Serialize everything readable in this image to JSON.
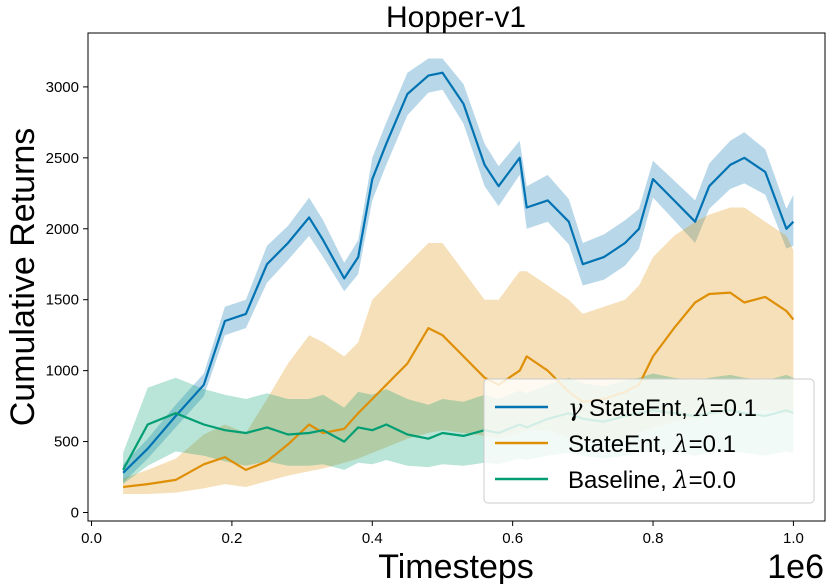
{
  "chart_data": {
    "type": "line",
    "title": "Hopper-v1",
    "xlabel": "Timesteps",
    "ylabel": "Cumulative Returns",
    "x_offset_label": "1e6",
    "xlim": [
      -0.005,
      1.045
    ],
    "ylim": [
      -60,
      3380
    ],
    "x_ticks": [
      0.0,
      0.2,
      0.4,
      0.6,
      0.8,
      1.0
    ],
    "x_tick_labels": [
      "0.0",
      "0.2",
      "0.4",
      "0.6",
      "0.8",
      "1.0"
    ],
    "y_ticks": [
      0,
      500,
      1000,
      1500,
      2000,
      2500,
      3000
    ],
    "y_tick_labels": [
      "0",
      "500",
      "1000",
      "1500",
      "2000",
      "2500",
      "3000"
    ],
    "grid": false,
    "legend_position": "lower-right",
    "series": [
      {
        "name": "γ StateEnt, λ=0.1",
        "legend_parts": [
          [
            "γ",
            true
          ],
          [
            " StateEnt, ",
            false
          ],
          [
            "λ",
            true
          ],
          [
            "=0.1",
            false
          ]
        ],
        "color": "#0173b2",
        "x": [
          0.045,
          0.08,
          0.12,
          0.16,
          0.19,
          0.22,
          0.25,
          0.28,
          0.31,
          0.33,
          0.36,
          0.38,
          0.4,
          0.42,
          0.45,
          0.48,
          0.5,
          0.53,
          0.56,
          0.58,
          0.61,
          0.62,
          0.65,
          0.68,
          0.7,
          0.73,
          0.76,
          0.78,
          0.8,
          0.83,
          0.86,
          0.88,
          0.91,
          0.93,
          0.96,
          0.99,
          1.0
        ],
        "y": [
          280,
          450,
          680,
          900,
          1350,
          1400,
          1750,
          1900,
          2080,
          1920,
          1650,
          1800,
          2350,
          2600,
          2950,
          3080,
          3100,
          2880,
          2450,
          2300,
          2500,
          2150,
          2200,
          2050,
          1750,
          1800,
          1900,
          2000,
          2350,
          2200,
          2050,
          2300,
          2450,
          2500,
          2400,
          2000,
          2050
        ],
        "lower": [
          210,
          380,
          600,
          820,
          1250,
          1300,
          1620,
          1780,
          1950,
          1800,
          1560,
          1680,
          2200,
          2450,
          2800,
          2960,
          2980,
          2740,
          2300,
          2160,
          2380,
          2000,
          2050,
          1890,
          1600,
          1640,
          1740,
          1860,
          2220,
          2060,
          1900,
          2140,
          2280,
          2320,
          2240,
          1860,
          1880
        ],
        "upper": [
          340,
          520,
          760,
          980,
          1450,
          1500,
          1880,
          2020,
          2220,
          2060,
          1760,
          1920,
          2500,
          2750,
          3100,
          3200,
          3200,
          3020,
          2600,
          2440,
          2620,
          2300,
          2380,
          2210,
          1900,
          1960,
          2060,
          2140,
          2480,
          2340,
          2200,
          2460,
          2620,
          2680,
          2560,
          2140,
          2240
        ]
      },
      {
        "name": "StateEnt, λ=0.1",
        "legend_parts": [
          [
            "StateEnt, ",
            false
          ],
          [
            "λ",
            true
          ],
          [
            "=0.1",
            false
          ]
        ],
        "color": "#de8f05",
        "x": [
          0.045,
          0.08,
          0.12,
          0.16,
          0.19,
          0.22,
          0.25,
          0.28,
          0.31,
          0.33,
          0.36,
          0.38,
          0.4,
          0.42,
          0.45,
          0.48,
          0.5,
          0.53,
          0.56,
          0.58,
          0.61,
          0.62,
          0.65,
          0.68,
          0.7,
          0.73,
          0.76,
          0.78,
          0.8,
          0.83,
          0.86,
          0.88,
          0.91,
          0.93,
          0.96,
          0.99,
          1.0
        ],
        "y": [
          180,
          200,
          230,
          340,
          390,
          300,
          360,
          480,
          620,
          560,
          590,
          700,
          800,
          900,
          1050,
          1300,
          1250,
          1100,
          950,
          900,
          1000,
          1100,
          1000,
          850,
          780,
          800,
          850,
          900,
          1100,
          1300,
          1480,
          1540,
          1550,
          1480,
          1520,
          1420,
          1360
        ],
        "lower": [
          130,
          130,
          140,
          170,
          200,
          180,
          220,
          260,
          290,
          310,
          350,
          380,
          420,
          460,
          520,
          560,
          580,
          560,
          540,
          520,
          560,
          580,
          580,
          530,
          500,
          500,
          520,
          560,
          600,
          640,
          660,
          680,
          700,
          720,
          720,
          700,
          700
        ],
        "upper": [
          240,
          300,
          380,
          550,
          620,
          560,
          800,
          1050,
          1250,
          1200,
          1100,
          1200,
          1500,
          1600,
          1750,
          1900,
          1900,
          1700,
          1500,
          1500,
          1700,
          1700,
          1600,
          1500,
          1400,
          1450,
          1500,
          1600,
          1800,
          1950,
          2050,
          2100,
          2150,
          2150,
          2050,
          1950,
          1850
        ]
      },
      {
        "name": "Baseline, λ=0.0",
        "legend_parts": [
          [
            "Baseline, ",
            false
          ],
          [
            "λ",
            true
          ],
          [
            "=0.0",
            false
          ]
        ],
        "color": "#029e73",
        "x": [
          0.045,
          0.08,
          0.12,
          0.16,
          0.19,
          0.22,
          0.25,
          0.28,
          0.31,
          0.33,
          0.36,
          0.38,
          0.4,
          0.42,
          0.45,
          0.48,
          0.5,
          0.53,
          0.56,
          0.58,
          0.61,
          0.62,
          0.65,
          0.68,
          0.7,
          0.73,
          0.76,
          0.78,
          0.8,
          0.83,
          0.86,
          0.88,
          0.91,
          0.93,
          0.96,
          0.99,
          1.0
        ],
        "y": [
          300,
          620,
          700,
          620,
          580,
          560,
          600,
          550,
          560,
          580,
          500,
          600,
          580,
          620,
          550,
          520,
          560,
          540,
          580,
          560,
          620,
          600,
          660,
          700,
          660,
          640,
          680,
          700,
          720,
          700,
          680,
          700,
          720,
          700,
          680,
          720,
          700
        ],
        "lower": [
          200,
          330,
          430,
          400,
          360,
          330,
          360,
          330,
          330,
          340,
          300,
          350,
          340,
          370,
          330,
          320,
          340,
          330,
          350,
          340,
          380,
          370,
          400,
          420,
          400,
          380,
          400,
          420,
          430,
          420,
          400,
          420,
          430,
          420,
          400,
          430,
          420
        ],
        "upper": [
          420,
          880,
          950,
          870,
          830,
          800,
          840,
          800,
          800,
          830,
          740,
          850,
          830,
          870,
          800,
          760,
          800,
          780,
          830,
          800,
          860,
          840,
          900,
          950,
          910,
          890,
          930,
          950,
          980,
          950,
          930,
          950,
          970,
          950,
          930,
          970,
          950
        ]
      }
    ]
  }
}
